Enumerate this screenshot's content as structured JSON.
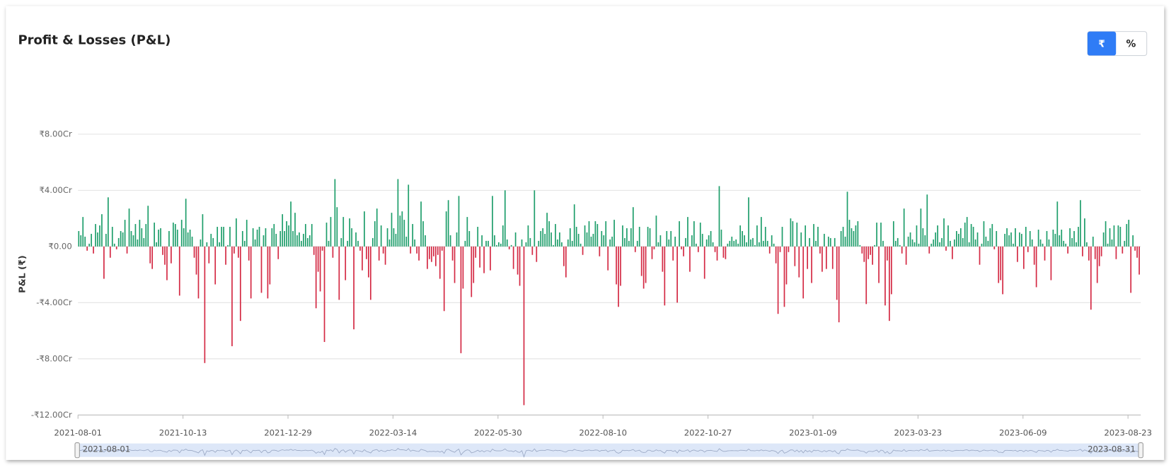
{
  "chart_data": {
    "type": "bar",
    "title": "Profit & Losses (P&L)",
    "y_label": "P&L (₹)",
    "buttons": [
      "₹",
      "%"
    ],
    "zoom": {
      "start": "2021-08-01",
      "end": "2023-08-31"
    },
    "positive_color": "#1e9e6b",
    "negative_color": "#d42a44",
    "grid": true,
    "ylim": [
      -12,
      8
    ],
    "yticks": [
      {
        "value": -12,
        "label": "-₹12.00Cr"
      },
      {
        "value": -8,
        "label": "-₹8.00Cr"
      },
      {
        "value": -4,
        "label": "-₹4.00Cr"
      },
      {
        "value": 0,
        "label": "₹0.00"
      },
      {
        "value": 4,
        "label": "₹4.00Cr"
      },
      {
        "value": 8,
        "label": "₹8.00Cr"
      }
    ],
    "categories": [
      "2021-08-01",
      null,
      null,
      null,
      null,
      null,
      null,
      null,
      null,
      null,
      null,
      null,
      null,
      null,
      null,
      null,
      null,
      null,
      null,
      null,
      null,
      null,
      null,
      null,
      null,
      null,
      null,
      null,
      null,
      null,
      null,
      null,
      null,
      null,
      null,
      null,
      null,
      null,
      null,
      null,
      null,
      null,
      null,
      null,
      null,
      null,
      null,
      null,
      null,
      null,
      "2021-10-13",
      null,
      null,
      null,
      null,
      null,
      null,
      null,
      null,
      null,
      null,
      null,
      null,
      null,
      null,
      null,
      null,
      null,
      null,
      null,
      null,
      null,
      null,
      null,
      null,
      null,
      null,
      null,
      null,
      null,
      null,
      null,
      null,
      null,
      null,
      null,
      null,
      null,
      null,
      null,
      null,
      null,
      null,
      null,
      null,
      null,
      null,
      null,
      null,
      null,
      "2021-12-29",
      null,
      null,
      null,
      null,
      null,
      null,
      null,
      null,
      null,
      null,
      null,
      null,
      null,
      null,
      null,
      null,
      null,
      null,
      null,
      null,
      null,
      null,
      null,
      null,
      null,
      null,
      null,
      null,
      null,
      null,
      null,
      null,
      null,
      null,
      null,
      null,
      null,
      null,
      null,
      null,
      null,
      null,
      null,
      null,
      null,
      null,
      null,
      null,
      null,
      "2022-03-14",
      null,
      null,
      null,
      null,
      null,
      null,
      null,
      null,
      null,
      null,
      null,
      null,
      null,
      null,
      null,
      null,
      null,
      null,
      null,
      null,
      null,
      null,
      null,
      null,
      null,
      null,
      null,
      null,
      null,
      null,
      null,
      null,
      null,
      null,
      null,
      null,
      null,
      null,
      null,
      null,
      null,
      null,
      null,
      null,
      null,
      null,
      null,
      null,
      null,
      "2022-05-30",
      null,
      null,
      null,
      null,
      null,
      null,
      null,
      null,
      null,
      null,
      null,
      null,
      null,
      null,
      null,
      null,
      null,
      null,
      null,
      null,
      null,
      null,
      null,
      null,
      null,
      null,
      null,
      null,
      null,
      null,
      null,
      null,
      null,
      null,
      null,
      null,
      null,
      null,
      null,
      null,
      null,
      null,
      null,
      null,
      null,
      null,
      null,
      null,
      null,
      "2022-08-10",
      null,
      null,
      null,
      null,
      null,
      null,
      null,
      null,
      null,
      null,
      null,
      null,
      null,
      null,
      null,
      null,
      null,
      null,
      null,
      null,
      null,
      null,
      null,
      null,
      null,
      null,
      null,
      null,
      null,
      null,
      null,
      null,
      null,
      null,
      null,
      null,
      null,
      null,
      null,
      null,
      null,
      null,
      null,
      null,
      null,
      null,
      null,
      null,
      null,
      "2022-10-27",
      null,
      null,
      null,
      null,
      null,
      null,
      null,
      null,
      null,
      null,
      null,
      null,
      null,
      null,
      null,
      null,
      null,
      null,
      null,
      null,
      null,
      null,
      null,
      null,
      null,
      null,
      null,
      null,
      null,
      null,
      null,
      null,
      null,
      null,
      null,
      null,
      null,
      null,
      null,
      null,
      null,
      null,
      null,
      null,
      null,
      null,
      null,
      null,
      null,
      "2023-01-09",
      null,
      null,
      null,
      null,
      null,
      null,
      null,
      null,
      null,
      null,
      null,
      null,
      null,
      null,
      null,
      null,
      null,
      null,
      null,
      null,
      null,
      null,
      null,
      null,
      null,
      null,
      null,
      null,
      null,
      null,
      null,
      null,
      null,
      null,
      null,
      null,
      null,
      null,
      null,
      null,
      null,
      null,
      null,
      null,
      null,
      null,
      null,
      null,
      null,
      "2023-03-23",
      null,
      null,
      null,
      null,
      null,
      null,
      null,
      null,
      null,
      null,
      null,
      null,
      null,
      null,
      null,
      null,
      null,
      null,
      null,
      null,
      null,
      null,
      null,
      null,
      null,
      null,
      null,
      null,
      null,
      null,
      null,
      null,
      null,
      null,
      null,
      null,
      null,
      null,
      null,
      null,
      null,
      null,
      null,
      null,
      null,
      null,
      null,
      null,
      null,
      "2023-06-09",
      null,
      null,
      null,
      null,
      null,
      null,
      null,
      null,
      null,
      null,
      null,
      null,
      null,
      null,
      null,
      null,
      null,
      null,
      null,
      null,
      null,
      null,
      null,
      null,
      null,
      null,
      null,
      null,
      null,
      null,
      null,
      null,
      null,
      null,
      null,
      null,
      null,
      null,
      null,
      null,
      null,
      null,
      null,
      null,
      null,
      null,
      null,
      null,
      null,
      "2023-08-23",
      null,
      null,
      null,
      null,
      null
    ],
    "values": [
      1.1,
      0.8,
      2.1,
      0.7,
      -0.3,
      0.2,
      0.9,
      -0.5,
      1.6,
      1.0,
      1.5,
      2.3,
      -2.3,
      0.9,
      3.5,
      -0.8,
      1.4,
      0.2,
      -0.2,
      0.6,
      1.1,
      1.0,
      1.9,
      -0.5,
      2.7,
      1.1,
      0.8,
      1.6,
      0.5,
      1.9,
      1.3,
      0.6,
      1.6,
      2.9,
      -1.2,
      -1.6,
      1.7,
      0.3,
      1.2,
      1.3,
      -0.6,
      -1.3,
      -2.4,
      1.1,
      -1.2,
      1.7,
      1.6,
      1.2,
      -3.5,
      1.9,
      1.3,
      3.4,
      1.0,
      1.2,
      0.7,
      -0.8,
      -2.0,
      -3.7,
      0.5,
      2.3,
      -8.3,
      0.3,
      -1.2,
      0.9,
      0.6,
      -2.7,
      1.4,
      0.3,
      1.4,
      1.4,
      -1.3,
      0.1,
      1.4,
      -7.1,
      -0.5,
      2.0,
      -0.8,
      -5.3,
      1.1,
      0.4,
      1.9,
      -1.0,
      -3.7,
      1.3,
      0.5,
      1.2,
      1.4,
      -3.3,
      0.8,
      1.3,
      -3.7,
      -2.7,
      1.3,
      1.6,
      0.9,
      -0.9,
      1.1,
      2.3,
      1.1,
      1.8,
      1.5,
      3.2,
      1.1,
      2.4,
      0.8,
      1.0,
      0.4,
      0.9,
      1.6,
      0.6,
      0.8,
      1.6,
      -0.6,
      -4.4,
      -1.8,
      -3.2,
      -0.3,
      -6.8,
      1.7,
      0.4,
      2.1,
      -0.8,
      4.8,
      2.8,
      -3.8,
      0.6,
      2.1,
      -2.4,
      0.4,
      2.0,
      1.3,
      -5.9,
      1.0,
      0.4,
      -0.3,
      -1.7,
      2.5,
      -0.9,
      -2.2,
      -3.8,
      0.6,
      1.8,
      2.7,
      -1.0,
      1.5,
      -0.5,
      -1.3,
      1.3,
      0.5,
      2.4,
      1.3,
      0.9,
      4.8,
      2.2,
      2.5,
      1.9,
      0.7,
      4.4,
      -0.5,
      1.6,
      0.5,
      -0.5,
      -1.0,
      3.2,
      1.8,
      0.8,
      -1.6,
      -0.9,
      -1.1,
      -0.7,
      -1.4,
      -0.6,
      -2.3,
      -0.3,
      -4.6,
      2.5,
      3.3,
      0.8,
      -1.0,
      -2.6,
      1.0,
      3.6,
      -7.6,
      -3.0,
      0.4,
      2.1,
      1.1,
      -3.6,
      -2.6,
      -0.8,
      1.4,
      -1.5,
      0.8,
      -1.9,
      0.4,
      0.4,
      -1.7,
      3.6,
      0.8,
      0.1,
      0.3,
      0.2,
      1.5,
      4.0,
      0.5,
      -0.2,
      0.1,
      -1.6,
      1.0,
      -2.0,
      -2.8,
      0.5,
      -11.3,
      0.3,
      1.5,
      0.6,
      -0.6,
      4.0,
      -1.1,
      0.4,
      1.1,
      1.3,
      0.9,
      2.4,
      1.8,
      1.0,
      0.1,
      1.6,
      0.5,
      1.0,
      0.3,
      -1.4,
      -2.2,
      0.5,
      1.3,
      0.4,
      3.0,
      1.4,
      0.9,
      0.2,
      -0.6,
      1.5,
      1.0,
      1.8,
      0.7,
      0.9,
      1.8,
      1.6,
      -0.7,
      1.1,
      0.8,
      1.8,
      -1.7,
      0.5,
      0.7,
      1.9,
      -2.7,
      -4.3,
      -2.8,
      1.5,
      0.6,
      1.3,
      0.4,
      1.3,
      2.8,
      -0.4,
      0.4,
      1.4,
      -2.1,
      -3.0,
      -2.6,
      1.4,
      1.3,
      -0.9,
      -0.2,
      2.2,
      0.3,
      0.8,
      -1.8,
      -4.2,
      1.1,
      0.5,
      1.1,
      -1.0,
      0.7,
      -4.0,
      1.8,
      -0.2,
      -0.7,
      0.6,
      2.1,
      -1.8,
      0.8,
      1.8,
      0.2,
      -0.4,
      1.7,
      0.9,
      -2.3,
      0.5,
      0.8,
      1.1,
      0.3,
      -0.4,
      -1.0,
      4.3,
      1.2,
      -0.8,
      -0.9,
      0.2,
      0.4,
      0.7,
      0.4,
      0.5,
      0.2,
      1.5,
      1.1,
      0.8,
      0.3,
      3.5,
      0.5,
      0.6,
      0.1,
      1.5,
      0.3,
      2.1,
      0.4,
      1.4,
      0.4,
      -0.5,
      0.8,
      0.2,
      -1.2,
      -4.8,
      -0.4,
      1.4,
      -4.3,
      -2.7,
      -0.4,
      2.0,
      1.8,
      -1.4,
      1.7,
      -2.2,
      1.0,
      -3.7,
      1.5,
      -1.6,
      0.6,
      -2.6,
      1.6,
      0.4,
      1.4,
      -0.5,
      -1.8,
      0.9,
      -1.6,
      0.7,
      0.6,
      -1.6,
      0.6,
      -3.8,
      -5.4,
      1.1,
      1.4,
      0.7,
      3.9,
      1.9,
      1.3,
      1.1,
      1.5,
      1.8,
      0.1,
      -0.5,
      -1.1,
      -4.1,
      -0.9,
      -0.6,
      -1.3,
      0.1,
      1.7,
      -2.6,
      1.7,
      0.4,
      -4.2,
      -1.0,
      -5.3,
      -3.4,
      1.8,
      0.4,
      0.6,
      0.1,
      -0.5,
      2.7,
      -1.3,
      0.7,
      1.0,
      0.5,
      0.3,
      1.5,
      0.2,
      2.7,
      1.3,
      0.8,
      3.7,
      -0.5,
      0.2,
      0.5,
      1.0,
      1.5,
      0.3,
      0.6,
      2.0,
      -0.3,
      1.5,
      0.4,
      -0.9,
      0.5,
      1.1,
      0.9,
      1.3,
      0.6,
      1.7,
      2.1,
      0.3,
      1.6,
      1.4,
      0.5,
      1.0,
      -1.3,
      0.2,
      1.8,
      0.7,
      0.4,
      1.3,
      1.6,
      -0.2,
      1.1,
      -2.6,
      -2.4,
      -3.4,
      0.9,
      1.3,
      0.8,
      1.0,
      0.2,
      1.3,
      -1.1,
      1.0,
      0.9,
      -1.6,
      1.4,
      -0.4,
      1.1,
      0.5,
      -1.3,
      -2.9,
      1.2,
      0.5,
      0.2,
      -1.0,
      1.1,
      0.5,
      -2.4,
      1.2,
      0.9,
      3.2,
      0.8,
      1.2,
      0.4,
      0.2,
      -0.5,
      1.3,
      0.6,
      1.1,
      0.3,
      1.4,
      3.3,
      -0.7,
      2.0,
      0.3,
      -1.0,
      -4.5,
      0.7,
      -0.9,
      -2.6,
      -1.4,
      -0.7,
      1.0,
      1.8,
      0.2,
      1.3,
      0.5,
      1.5,
      -0.9,
      1.5,
      1.4,
      -0.5,
      0.4,
      1.6,
      1.9,
      -3.3,
      0.8,
      -0.3,
      -0.8,
      -2.0
    ]
  }
}
